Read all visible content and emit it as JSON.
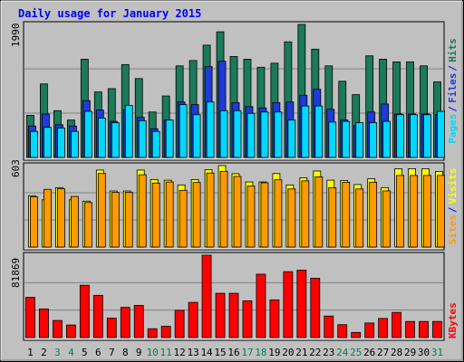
{
  "chart_data": {
    "type": "bar",
    "title": "Daily usage for January 2015",
    "categories": [
      "1",
      "2",
      "3",
      "4",
      "5",
      "6",
      "7",
      "8",
      "9",
      "10",
      "11",
      "12",
      "13",
      "14",
      "15",
      "16",
      "17",
      "18",
      "19",
      "20",
      "21",
      "22",
      "23",
      "24",
      "25",
      "26",
      "27",
      "28",
      "29",
      "30",
      "31"
    ],
    "weekend_days": [
      "3",
      "4",
      "10",
      "11",
      "17",
      "18",
      "24",
      "25",
      "31"
    ],
    "panels": [
      {
        "id": "top",
        "max_label": "1990",
        "ymax": 1990,
        "grid": true,
        "legend_words": [
          "Pages",
          "Files",
          "Hits"
        ],
        "legend_colors": [
          "#00d8ff",
          "#1f3ad9",
          "#1a7a5a"
        ],
        "series": [
          {
            "name": "Hits",
            "color": "#1a7a5a",
            "values": [
              630,
              1100,
              700,
              560,
              1470,
              980,
              1030,
              1390,
              1180,
              680,
              920,
              1370,
              1450,
              1680,
              1880,
              1510,
              1470,
              1350,
              1410,
              1730,
              1990,
              1620,
              1370,
              1140,
              940,
              1520,
              1470,
              1430,
              1430,
              1370,
              1130
            ]
          },
          {
            "name": "Files",
            "color": "#1f3ad9",
            "values": [
              470,
              650,
              490,
              470,
              850,
              710,
              540,
              710,
              600,
              430,
              560,
              830,
              790,
              1360,
              1440,
              820,
              760,
              740,
              820,
              830,
              930,
              1020,
              720,
              560,
              480,
              680,
              800,
              650,
              650,
              650,
              640
            ]
          },
          {
            "name": "Pages",
            "color": "#00d8ff",
            "values": [
              390,
              450,
              440,
              390,
              690,
              590,
              520,
              780,
              550,
              390,
              560,
              790,
              640,
              830,
              700,
              700,
              660,
              680,
              680,
              560,
              770,
              770,
              530,
              540,
              520,
              520,
              540,
              640,
              640,
              640,
              690
            ]
          }
        ]
      },
      {
        "id": "middle",
        "max_label": "603",
        "ymax": 603,
        "grid": true,
        "legend_words": [
          "Sites",
          "Visits"
        ],
        "legend_colors": [
          "#ff9a00",
          "#ffff00"
        ],
        "series": [
          {
            "name": "Visits",
            "color": "#ffff00",
            "values": [
              380,
              350,
              440,
              350,
              340,
              570,
              415,
              415,
              570,
              500,
              495,
              460,
              500,
              573,
              603,
              543,
              482,
              482,
              544,
              460,
              513,
              563,
              495,
              493,
              463,
              506,
              440,
              580,
              580,
              580,
              560
            ]
          },
          {
            "name": "Sites",
            "color": "#ff9a00",
            "values": [
              372,
              427,
              432,
              375,
              330,
              545,
              405,
              406,
              535,
              474,
              482,
              420,
              478,
              548,
              560,
              523,
              452,
              476,
              498,
              430,
              490,
              520,
              440,
              480,
              430,
              480,
              416,
              530,
              530,
              530,
              530
            ]
          }
        ]
      },
      {
        "id": "bottom",
        "max_label": "81869",
        "ymax": 81869,
        "grid": true,
        "legend_words": [
          "KBytes"
        ],
        "legend_colors": [
          "#ff0000"
        ],
        "series": [
          {
            "name": "KBytes",
            "color": "#ff0000",
            "values": [
              40000,
              28500,
              17000,
              12500,
              52000,
              42000,
              19300,
              30000,
              32000,
              8800,
              11200,
              27000,
              35000,
              81869,
              44000,
              44000,
              36500,
              63000,
              37500,
              65500,
              67000,
              59000,
              21400,
              12800,
              5100,
              14500,
              19000,
              25000,
              16000,
              16000,
              16000
            ]
          }
        ]
      }
    ]
  },
  "style": {
    "background": "#ffffff",
    "frame_color": "#c0c0c0",
    "plot_bg": "#c0c0c0",
    "title_color": "#0000ff",
    "weekday_label_color": "#000000",
    "weekend_label_color": "#00805a",
    "separator_color": "#0000ff"
  }
}
